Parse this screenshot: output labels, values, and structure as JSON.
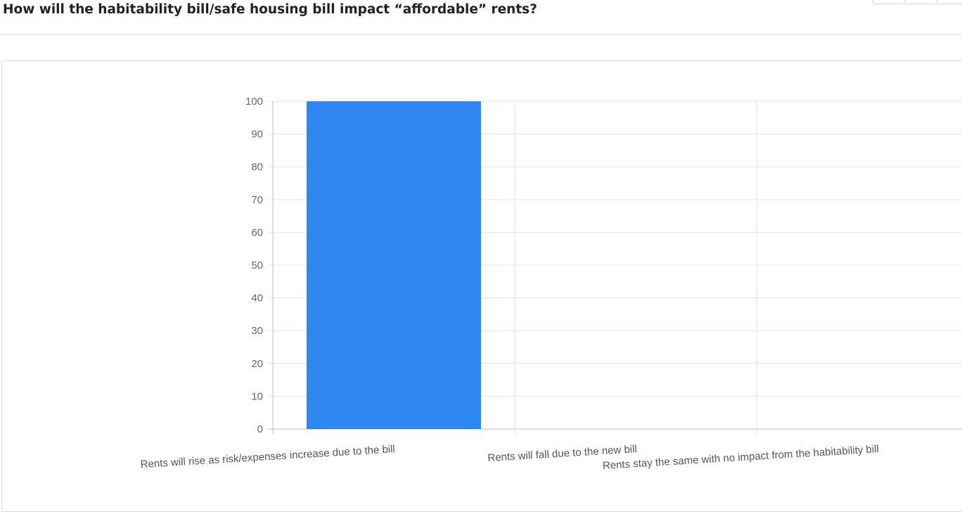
{
  "page": {
    "title": "How will the habitability bill/safe housing bill impact “affordable” rents?"
  },
  "chart_data": {
    "type": "bar",
    "title": "",
    "xlabel": "",
    "ylabel": "",
    "categories": [
      "Rents will rise as risk/expenses increase due to the bill",
      "Rents will fall due to the new bill",
      "Rents stay the same with no impact from the habitability bill"
    ],
    "values": [
      100,
      0,
      0
    ],
    "ylim": [
      0,
      100
    ],
    "yticks": [
      0,
      10,
      20,
      30,
      40,
      50,
      60,
      70,
      80,
      90,
      100
    ],
    "grid": true,
    "legend": "none",
    "bar_color": "#2e87f0"
  }
}
